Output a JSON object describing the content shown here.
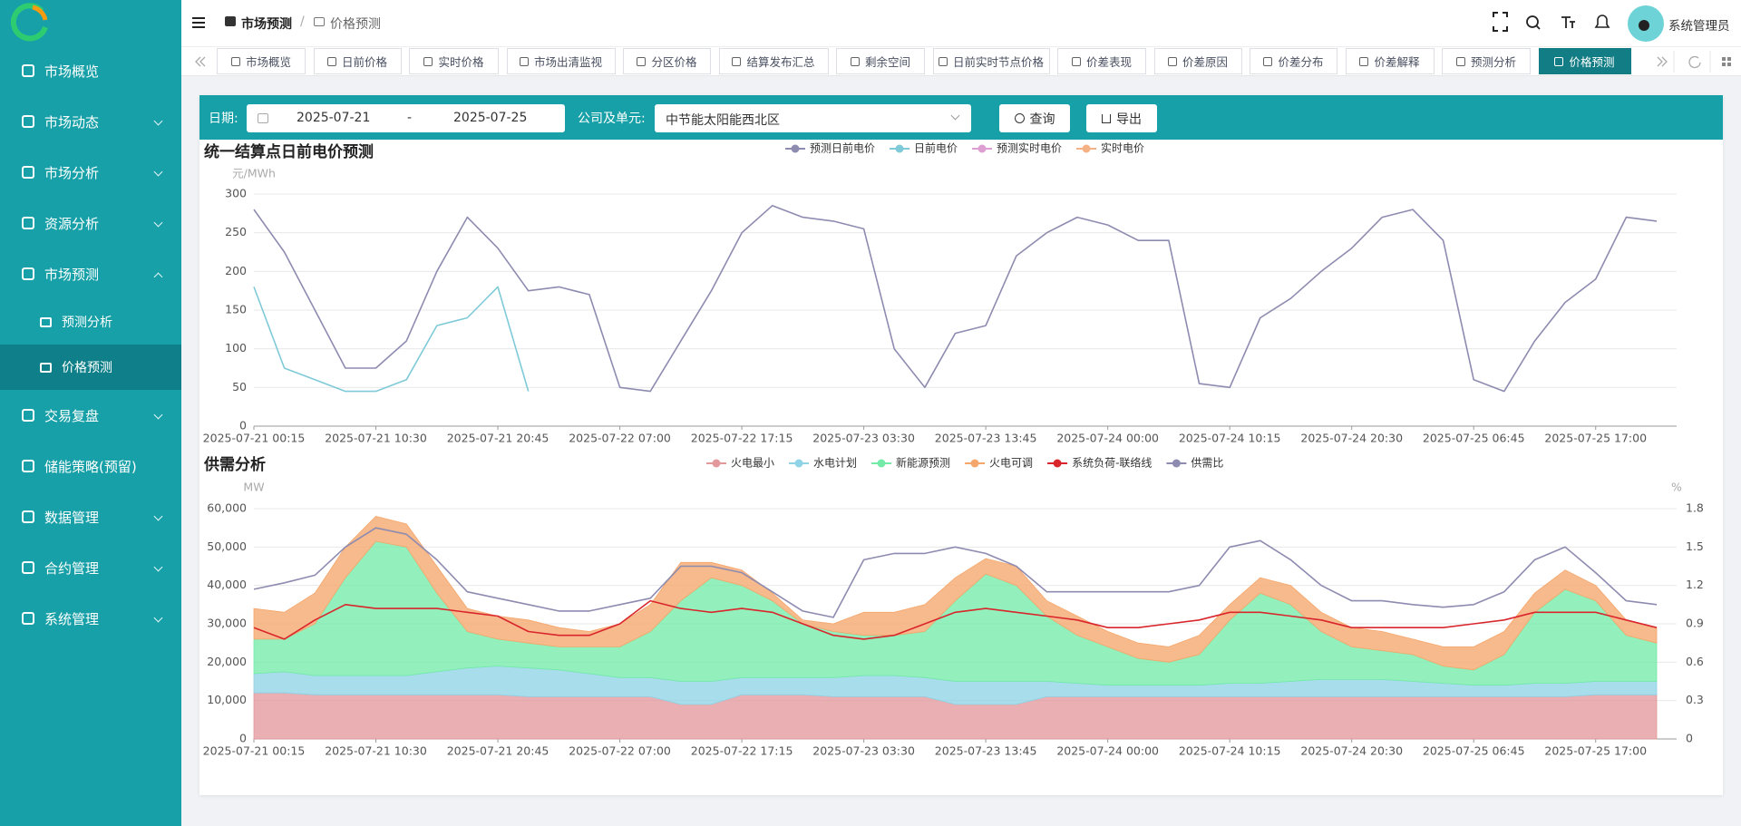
{
  "sidebar": {
    "items": [
      "市场概览",
      "市场动态",
      "市场分析",
      "资源分析",
      "市场预测",
      "预测分析",
      "价格预测",
      "交易复盘",
      "储能策略(预留)",
      "数据管理",
      "合约管理",
      "系统管理"
    ]
  },
  "header": {
    "breadcrumb": [
      "市场预测",
      "/",
      "价格预测"
    ],
    "user": "系统管理员"
  },
  "tabs": [
    "市场概览",
    "日前价格",
    "实时价格",
    "市场出清监视",
    "分区价格",
    "结算发布汇总",
    "剩余空间",
    "日前实时节点价格",
    "价差表现",
    "价差原因",
    "价差分布",
    "价差解释",
    "预测分析",
    "价格预测"
  ],
  "filters": {
    "date_label": "日期:",
    "start": "2025-07-21",
    "sep": "-",
    "end": "2025-07-25",
    "unit_label": "公司及单元:",
    "unit": "中节能太阳能西北区",
    "query": "查询",
    "export": "导出"
  },
  "chart_data": [
    {
      "type": "line",
      "title": "统一结算点日前电价预测",
      "y_unit": "元/MWh",
      "categories": [
        "2025-07-21 00:15",
        null,
        null,
        null,
        "2025-07-21 10:30",
        null,
        null,
        null,
        "2025-07-21 20:45",
        null,
        null,
        null,
        "2025-07-22 07:00",
        null,
        null,
        null,
        "2025-07-22 17:15",
        null,
        null,
        null,
        "2025-07-23 03:30",
        null,
        null,
        null,
        "2025-07-23 13:45",
        null,
        null,
        null,
        "2025-07-24 00:00",
        null,
        null,
        null,
        "2025-07-24 10:15",
        null,
        null,
        null,
        "2025-07-24 20:30",
        null,
        null,
        null,
        "2025-07-25 06:45",
        null,
        null,
        null,
        "2025-07-25 17:00",
        null,
        null
      ],
      "ylim": [
        0,
        300
      ],
      "yticks": [
        0,
        50,
        100,
        150,
        200,
        250,
        300
      ],
      "grid": true,
      "series": [
        {
          "name": "预测日前电价",
          "color": "#8e8bb0",
          "values": [
            280,
            225,
            150,
            75,
            75,
            110,
            200,
            270,
            230,
            175,
            180,
            170,
            50,
            45,
            110,
            175,
            250,
            285,
            270,
            265,
            255,
            100,
            50,
            120,
            130,
            220,
            250,
            270,
            260,
            240,
            240,
            55,
            50,
            140,
            165,
            200,
            230,
            270,
            280,
            240,
            60,
            45,
            110,
            160,
            190,
            270,
            265
          ]
        },
        {
          "name": "日前电价",
          "color": "#7fcad8",
          "values": [
            180,
            75,
            60,
            45,
            45,
            60,
            130,
            140,
            180,
            45,
            null,
            null,
            null,
            null,
            null,
            null,
            null,
            null,
            null,
            null,
            null,
            null,
            null,
            null,
            null,
            null,
            null,
            null,
            null,
            null,
            null,
            null,
            null,
            null,
            null,
            null,
            null,
            null,
            null,
            null,
            null,
            null,
            null,
            null,
            null,
            null,
            null
          ]
        },
        {
          "name": "预测实时电价",
          "color": "#dd9fd2",
          "values": [
            null,
            null,
            null,
            null,
            null,
            null,
            null,
            null,
            null,
            null,
            null,
            null,
            null,
            null,
            null,
            null,
            null,
            null,
            null,
            null,
            null,
            null,
            null,
            null,
            null,
            null,
            null,
            null,
            null,
            null,
            null,
            null,
            null,
            null,
            null,
            null,
            null,
            null,
            null,
            null,
            null,
            null,
            null,
            null,
            null,
            null,
            null
          ]
        },
        {
          "name": "实时电价",
          "color": "#f4b183",
          "values": [
            null,
            null,
            null,
            null,
            null,
            null,
            null,
            null,
            null,
            null,
            null,
            null,
            null,
            null,
            null,
            null,
            null,
            null,
            null,
            null,
            null,
            null,
            null,
            null,
            null,
            null,
            null,
            null,
            null,
            null,
            null,
            null,
            null,
            null,
            null,
            null,
            null,
            null,
            null,
            null,
            null,
            null,
            null,
            null,
            null,
            null,
            null
          ]
        }
      ]
    },
    {
      "type": "area",
      "title": "供需分析",
      "y_unit": "MW",
      "y2_unit": "%",
      "categories": [
        "2025-07-21 00:15",
        null,
        null,
        null,
        "2025-07-21 10:30",
        null,
        null,
        null,
        "2025-07-21 20:45",
        null,
        null,
        null,
        "2025-07-22 07:00",
        null,
        null,
        null,
        "2025-07-22 17:15",
        null,
        null,
        null,
        "2025-07-23 03:30",
        null,
        null,
        null,
        "2025-07-23 13:45",
        null,
        null,
        null,
        "2025-07-24 00:00",
        null,
        null,
        null,
        "2025-07-24 10:15",
        null,
        null,
        null,
        "2025-07-24 20:30",
        null,
        null,
        null,
        "2025-07-25 06:45",
        null,
        null,
        null,
        "2025-07-25 17:00",
        null,
        null
      ],
      "ylim": [
        0,
        60000
      ],
      "yticks": [
        0,
        {
          "value": 10000,
          "label": "10,000"
        },
        {
          "value": 20000,
          "label": "20,000"
        },
        {
          "value": 30000,
          "label": "30,000"
        },
        {
          "value": 40000,
          "label": "40,000"
        },
        {
          "value": 50000,
          "label": "50,000"
        },
        {
          "value": 60000,
          "label": "60,000"
        }
      ],
      "y2lim": [
        0,
        1.8
      ],
      "y2ticks": [
        0,
        0.3,
        0.6,
        0.9,
        1.2,
        1.5,
        1.8
      ],
      "grid": true,
      "series": [
        {
          "name": "火电最小",
          "type": "area",
          "color": "#e3999c",
          "values": [
            12000,
            12000,
            11500,
            11500,
            11500,
            11500,
            11500,
            11500,
            11500,
            11000,
            11000,
            11000,
            11000,
            11000,
            9000,
            9000,
            11500,
            11500,
            11500,
            11000,
            11000,
            11000,
            11000,
            9000,
            9000,
            9000,
            11000,
            11000,
            11000,
            11000,
            11000,
            11000,
            11000,
            11000,
            11000,
            11000,
            11000,
            11000,
            11000,
            11000,
            11000,
            11000,
            11000,
            11000,
            11500,
            11500,
            11500
          ]
        },
        {
          "name": "水电计划",
          "type": "area",
          "color": "#8fd3e6",
          "values": [
            5000,
            5500,
            5000,
            5000,
            5000,
            5000,
            6000,
            7000,
            7500,
            7500,
            7000,
            6000,
            5000,
            5000,
            6000,
            6000,
            4500,
            4500,
            4500,
            5000,
            5500,
            5500,
            5000,
            6000,
            6000,
            6000,
            4000,
            3500,
            3000,
            3000,
            3000,
            3000,
            3500,
            3500,
            4000,
            4500,
            4500,
            4500,
            4000,
            3500,
            3000,
            3000,
            3500,
            3500,
            3500,
            3500,
            3500
          ]
        },
        {
          "name": "新能源预测",
          "type": "area",
          "color": "#74eaa8",
          "values": [
            9000,
            8500,
            13500,
            25500,
            35000,
            33500,
            20500,
            9500,
            7000,
            6500,
            6000,
            7000,
            8000,
            12000,
            21000,
            27000,
            24000,
            20000,
            14000,
            12000,
            10500,
            10500,
            12000,
            21000,
            28000,
            25000,
            17000,
            12500,
            10000,
            7000,
            6000,
            8000,
            16500,
            23500,
            20000,
            12500,
            8500,
            7500,
            7000,
            4500,
            4000,
            8000,
            18500,
            24500,
            21000,
            12000,
            10000
          ]
        },
        {
          "name": "火电可调",
          "type": "area",
          "color": "#f5a66b",
          "values": [
            8000,
            7000,
            8000,
            8000,
            6500,
            6000,
            7000,
            6000,
            6000,
            6000,
            5000,
            4000,
            6000,
            7000,
            10000,
            4000,
            4000,
            2000,
            1000,
            2000,
            6000,
            6000,
            7000,
            6000,
            4000,
            5000,
            4000,
            5000,
            4000,
            4000,
            4000,
            5000,
            4000,
            4000,
            5000,
            5000,
            5000,
            5000,
            4000,
            5000,
            6000,
            6000,
            5000,
            5000,
            4000,
            4000,
            4000
          ]
        },
        {
          "name": "系统负荷-联络线",
          "type": "line",
          "color": "#d9262c",
          "values": [
            29000,
            26000,
            31000,
            35000,
            34000,
            34000,
            34000,
            33000,
            32000,
            28000,
            27000,
            27000,
            30000,
            36000,
            34000,
            33000,
            34000,
            33000,
            30000,
            27000,
            26000,
            27000,
            30000,
            33000,
            34000,
            33000,
            32000,
            31000,
            29000,
            29000,
            30000,
            31000,
            33000,
            33000,
            32000,
            31000,
            29000,
            29000,
            29000,
            29000,
            30000,
            31000,
            33000,
            33000,
            33000,
            31000,
            29000
          ]
        },
        {
          "name": "供需比",
          "type": "line",
          "axis": "y2",
          "color": "#8e8bb0",
          "values": [
            1.17,
            1.22,
            1.28,
            1.5,
            1.65,
            1.6,
            1.4,
            1.15,
            1.1,
            1.05,
            1.0,
            1.0,
            1.05,
            1.1,
            1.35,
            1.35,
            1.3,
            1.15,
            1.0,
            0.95,
            1.4,
            1.45,
            1.45,
            1.5,
            1.45,
            1.35,
            1.15,
            1.15,
            1.15,
            1.15,
            1.15,
            1.2,
            1.5,
            1.55,
            1.4,
            1.2,
            1.08,
            1.08,
            1.05,
            1.03,
            1.05,
            1.15,
            1.4,
            1.5,
            1.3,
            1.08,
            1.05
          ]
        }
      ]
    }
  ]
}
